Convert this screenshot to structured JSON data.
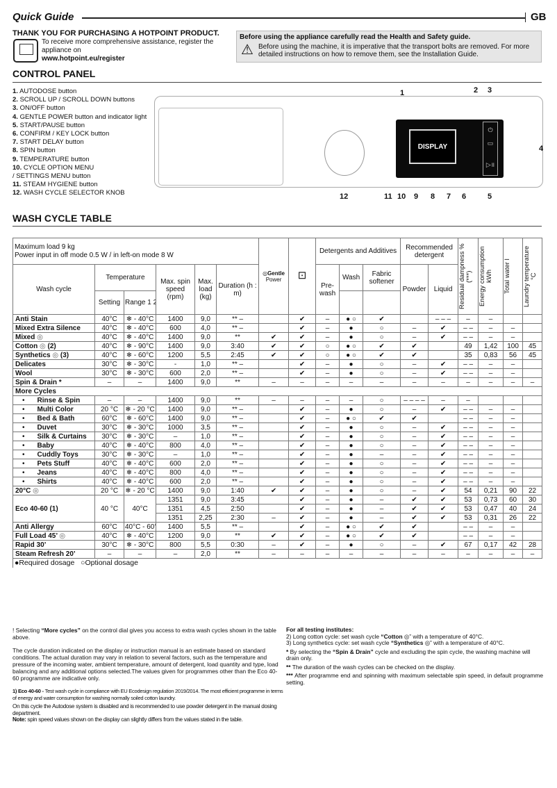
{
  "header": {
    "title": "Quick Guide",
    "lang": "GB"
  },
  "intro": {
    "thanks": "THANK YOU FOR PURCHASING A HOTPOINT PRODUCT.",
    "register_text": "To receive more comprehensive assistance, register the appliance on",
    "register_url": "www.hotpoint.eu/register"
  },
  "safety": {
    "heading": "Before using the appliance carefully read the Health and Safety guide.",
    "text": "Before using the machine, it is imperative that the transport bolts are removed. For more detailed instructions on how to remove them, see the Installation Guide.",
    "icon": "warning-triangle-icon"
  },
  "control_panel": {
    "title": "CONTROL PANEL",
    "display_label": "DISPLAY",
    "items": [
      {
        "n": "1.",
        "label": "AUTODOSE button"
      },
      {
        "n": "2.",
        "label": "SCROLL UP / SCROLL DOWN buttons"
      },
      {
        "n": "3.",
        "label": "ON/OFF button"
      },
      {
        "n": "4.",
        "label": "GENTLE POWER button and indicator light"
      },
      {
        "n": "5.",
        "label": "START/PAUSE button"
      },
      {
        "n": "6.",
        "label": "CONFIRM / KEY LOCK button"
      },
      {
        "n": "7.",
        "label": "START DELAY button"
      },
      {
        "n": "8.",
        "label": "SPIN button"
      },
      {
        "n": "9.",
        "label": "TEMPERATURE button"
      },
      {
        "n": "10.",
        "label": "CYCLE OPTION MENU"
      },
      {
        "n": "",
        "label": " / SETTINGS MENU button"
      },
      {
        "n": "11.",
        "label": "STEAM HYGIENE button"
      },
      {
        "n": "12.",
        "label": "WASH CYCLE SELECTOR KNOB"
      }
    ],
    "callouts": [
      "1",
      "2",
      "3",
      "4",
      "5",
      "6",
      "7",
      "8",
      "9",
      "10",
      "11",
      "12"
    ]
  },
  "table": {
    "title": "WASH CYCLE TABLE",
    "max_load": "Maximum load 9 kg",
    "power": "Power input in off  mode 0.5 W / in left-on mode 8 W",
    "headers": {
      "wash_cycle": "Wash cycle",
      "temperature": "Temperature",
      "setting": "Setting",
      "range": "Range 1 2",
      "spin": "Max. spin speed (rpm)",
      "load": "Max. load (kg)",
      "duration": "Duration (h : m)",
      "gentle": "Gentle",
      "gentle2": "Power",
      "detergents": "Detergents and Additives",
      "prewash": "Pre-wash",
      "wash": "Wash",
      "softener": "Fabric softener",
      "recommended": "Recommended detergent",
      "powder": "Powder",
      "liquid": "Liquid",
      "dampness": "Residual dampness % (***)",
      "energy": "Energy consumption kWh",
      "water": "Total water l",
      "laundry_temp": "Laundry temperature °C"
    },
    "more_cycles": "More Cycles",
    "rows": [
      {
        "name": "Anti Stain",
        "cells": [
          "40°C",
          "❄ - 40°C",
          "1400",
          "9,0",
          "** –",
          "",
          "✔",
          "–",
          "● ○",
          "✔",
          "",
          "– – –",
          "–",
          "–",
          "",
          ""
        ]
      },
      {
        "name": "Mixed Extra Silence",
        "cells": [
          "40°C",
          "❄ - 40°C",
          "600",
          "4,0",
          "** –",
          "",
          "✔",
          "–",
          "●",
          "○",
          "–",
          "✔",
          "– –",
          "–",
          "–",
          ""
        ]
      },
      {
        "name": "Mixed",
        "icon": true,
        "cells": [
          "40°C",
          "❄ - 40°C",
          "1400",
          "9,0",
          "**",
          "✔",
          "✔",
          "–",
          "●",
          "○",
          "–",
          "✔",
          "– –",
          "–",
          "–",
          ""
        ]
      },
      {
        "name": "Cotton",
        "suffix": "(2)",
        "icon": true,
        "cells": [
          "40°C",
          "❄ - 90°C",
          "1400",
          "9,0",
          "3:40",
          "✔",
          "✔",
          "○",
          "● ○",
          "✔",
          "✔",
          "",
          "49",
          "1,42",
          "100",
          "45"
        ]
      },
      {
        "name": "Synthetics",
        "suffix": "(3)",
        "icon": true,
        "cells": [
          "40°C",
          "❄ - 60°C",
          "1200",
          "5,5",
          "2:45",
          "✔",
          "✔",
          "○",
          "● ○",
          "✔",
          "✔",
          "",
          "35",
          "0,83",
          "56",
          "45"
        ]
      },
      {
        "name": "Delicates",
        "cells": [
          "30°C",
          "❄ - 30°C",
          "-",
          "1,0",
          "** –",
          "",
          "✔",
          "–",
          "●",
          "○",
          "–",
          "✔",
          "– –",
          "–",
          "–",
          ""
        ]
      },
      {
        "name": "Wool",
        "cells": [
          "30°C",
          "❄ - 30°C",
          "600",
          "2,0",
          "** –",
          "",
          "✔",
          "–",
          "●",
          "○",
          "–",
          "✔",
          "– –",
          "–",
          "–",
          ""
        ]
      },
      {
        "name": "Spin & Drain *",
        "cells": [
          "–",
          "–",
          "1400",
          "9,0",
          "**",
          "–",
          "–",
          "–",
          "–",
          "–",
          "–",
          "–",
          "–",
          "–",
          "–",
          "–"
        ]
      },
      {
        "section": true
      },
      {
        "name": "Rinse & Spin",
        "bullet": true,
        "cells": [
          "–",
          "–",
          "1400",
          "9,0",
          "**",
          "–",
          "–",
          "–",
          "–",
          "○",
          "– – – –",
          "–",
          "–",
          "",
          "",
          ""
        ]
      },
      {
        "name": "Multi Color",
        "bullet": true,
        "cells": [
          "20 °C",
          "❄ - 20 °C",
          "1400",
          "9,0",
          "** –",
          "",
          "✔",
          "–",
          "●",
          "○",
          "–",
          "✔",
          "– –",
          "–",
          "–",
          ""
        ]
      },
      {
        "name": "Bed & Bath",
        "bullet": true,
        "cells": [
          "60°C",
          "❄ - 60°C",
          "1400",
          "9,0",
          "** –",
          "",
          "✔",
          "–",
          "● ○",
          "✔",
          "✔",
          "",
          "– –",
          "–",
          "–",
          ""
        ]
      },
      {
        "name": "Duvet",
        "bullet": true,
        "cells": [
          "30°C",
          "❄ - 30°C",
          "1000",
          "3,5",
          "** –",
          "",
          "✔",
          "–",
          "●",
          "○",
          "–",
          "✔",
          "– –",
          "–",
          "–",
          ""
        ]
      },
      {
        "name": "Silk & Curtains",
        "bullet": true,
        "cells": [
          "30°C",
          "❄ - 30°C",
          "–",
          "1,0",
          "** –",
          "",
          "✔",
          "–",
          "●",
          "○",
          "–",
          "✔",
          "– –",
          "–",
          "–",
          ""
        ]
      },
      {
        "name": "Baby",
        "bullet": true,
        "cells": [
          "40°C",
          "❄ - 40°C",
          "800",
          "4,0",
          "** –",
          "",
          "✔",
          "–",
          "●",
          "○",
          "–",
          "✔",
          "– –",
          "–",
          "–",
          ""
        ]
      },
      {
        "name": "Cuddly Toys",
        "bullet": true,
        "cells": [
          "30°C",
          "❄ - 30°C",
          "–",
          "1,0",
          "** –",
          "",
          "✔",
          "–",
          "●",
          "–",
          "–",
          "✔",
          "– –",
          "–",
          "–",
          ""
        ]
      },
      {
        "name": "Pets Stuff",
        "bullet": true,
        "cells": [
          "40°C",
          "❄ - 40°C",
          "600",
          "2,0",
          "** –",
          "",
          "✔",
          "–",
          "●",
          "○",
          "–",
          "✔",
          "– –",
          "–",
          "–",
          ""
        ]
      },
      {
        "name": "Jeans",
        "bullet": true,
        "cells": [
          "40°C",
          "❄ - 40°C",
          "800",
          "4,0",
          "** –",
          "",
          "✔",
          "–",
          "●",
          "○",
          "–",
          "✔",
          "– –",
          "–",
          "–",
          ""
        ]
      },
      {
        "name": "Shirts",
        "bullet": true,
        "cells": [
          "40°C",
          "❄ - 40°C",
          "600",
          "2,0",
          "** –",
          "",
          "✔",
          "–",
          "●",
          "○",
          "–",
          "✔",
          "– –",
          "–",
          "–",
          ""
        ]
      },
      {
        "name": "20°C",
        "icon": true,
        "cells": [
          "20 °C",
          "❄ - 20 °C",
          "1400",
          "9,0",
          "1:40",
          "✔",
          "✔",
          "–",
          "●",
          "○",
          "–",
          "✔",
          "54",
          "0,21",
          "90",
          "22"
        ]
      },
      {
        "name": "Eco 40-60 (1)",
        "setting": "40 °C",
        "range": "40°C",
        "sub": [
          [
            "1351",
            "9,0",
            "3:45",
            "",
            "✔",
            "–",
            "●",
            "–",
            "✔",
            "✔",
            "53",
            "0,73",
            "60",
            "30"
          ],
          [
            "1351",
            "4,5",
            "2:50",
            "",
            "✔",
            "–",
            "●",
            "–",
            "✔",
            "✔",
            "53",
            "0,47",
            "40",
            "24"
          ],
          [
            "1351",
            "2,25",
            "2:30",
            "–",
            "✔",
            "–",
            "●",
            "–",
            "✔",
            "✔",
            "53",
            "0,31",
            "26",
            "22"
          ]
        ]
      },
      {
        "name": "Anti Allergy",
        "cells": [
          "60°C",
          "40°C - 60°C",
          "1400",
          "5,5",
          "** –",
          "",
          "✔",
          "–",
          "● ○",
          "✔",
          "✔",
          "",
          "– –",
          "–",
          "–",
          ""
        ]
      },
      {
        "name": "Full Load 45’",
        "icon": true,
        "cells": [
          "40°C",
          "❄ - 40°C",
          "1200",
          "9,0",
          "**",
          "✔",
          "✔",
          "–",
          "● ○",
          "✔",
          "✔",
          "",
          "– –",
          "–",
          "–",
          ""
        ]
      },
      {
        "name": "Rapid 30’",
        "cells": [
          "30°C",
          "❄ - 30°C",
          "800",
          "5,5",
          "0:30",
          "–",
          "✔",
          "–",
          "●",
          "○",
          "–",
          "✔",
          "67",
          "0,17",
          "42",
          "28"
        ]
      },
      {
        "name": "Steam Refresh 20’",
        "cells": [
          "–",
          "–",
          "–",
          "2,0",
          "**",
          "–",
          "–",
          "–",
          "–",
          "–",
          "–",
          "–",
          "–",
          "–",
          "–",
          "–"
        ]
      }
    ],
    "legend": {
      "required": "Required dosage",
      "optional": "Optional dosage"
    }
  },
  "notes_left": {
    "p1_pre": "! Selecting ",
    "p1_bold": "“More cycles”",
    "p1_post": " on the control dial gives you access to extra wash cycles shown in the table above.",
    "p2": "The cycle duration indicated on the display or instruction manual is an estimate based on standard conditions. The actual duration may vary in relation to several factors, such as the temperature and pressure of the incoming water, ambient temperature, amount of detergent, load quantity and type, load balancing and any additional options selected.The values given for programmes other than the Eco 40-60 programme are indicative only.",
    "p3_bold": "1) Eco 40-60 - ",
    "p3": "Test wash cycle in compliance with EU Ecodesign regulation 2019/2014. The most efficient programme in terms of energy and water consumption for washing normally soiled cotton laundry.",
    "p4": "On this cycle the Autodose system is disabled and is recommended to use powder detergent in the manual dosing department.",
    "p5_bold": "Note:",
    "p5": " spin speed values shown on the display can slightly differs from the values stated in the table."
  },
  "notes_right": {
    "title": "For all testing institutes:",
    "l2_pre": "2)  Long cotton cycle: set wash cycle ",
    "l2_bold": "“Cotton",
    "l2_post": "” with a temperature of 40°C.",
    "l3_pre": "3)  Long synthetics cycle: set wash cycle ",
    "l3_bold": "“Synthetics",
    "l3_post": "” with a temperature of 40°C.",
    "s1_mark": "*",
    "s1_pre": " By selecting the ",
    "s1_bold": "“Spin & Drain”",
    "s1_post": " cycle and excluding the spin cycle, the washing machine will drain only.",
    "s2_mark": "**",
    "s2": " The duration of the wash cycles can be checked on the display.",
    "s3_mark": "***",
    "s3": " After programme end and spinning with maximum selectable spin speed, in default programme setting."
  }
}
